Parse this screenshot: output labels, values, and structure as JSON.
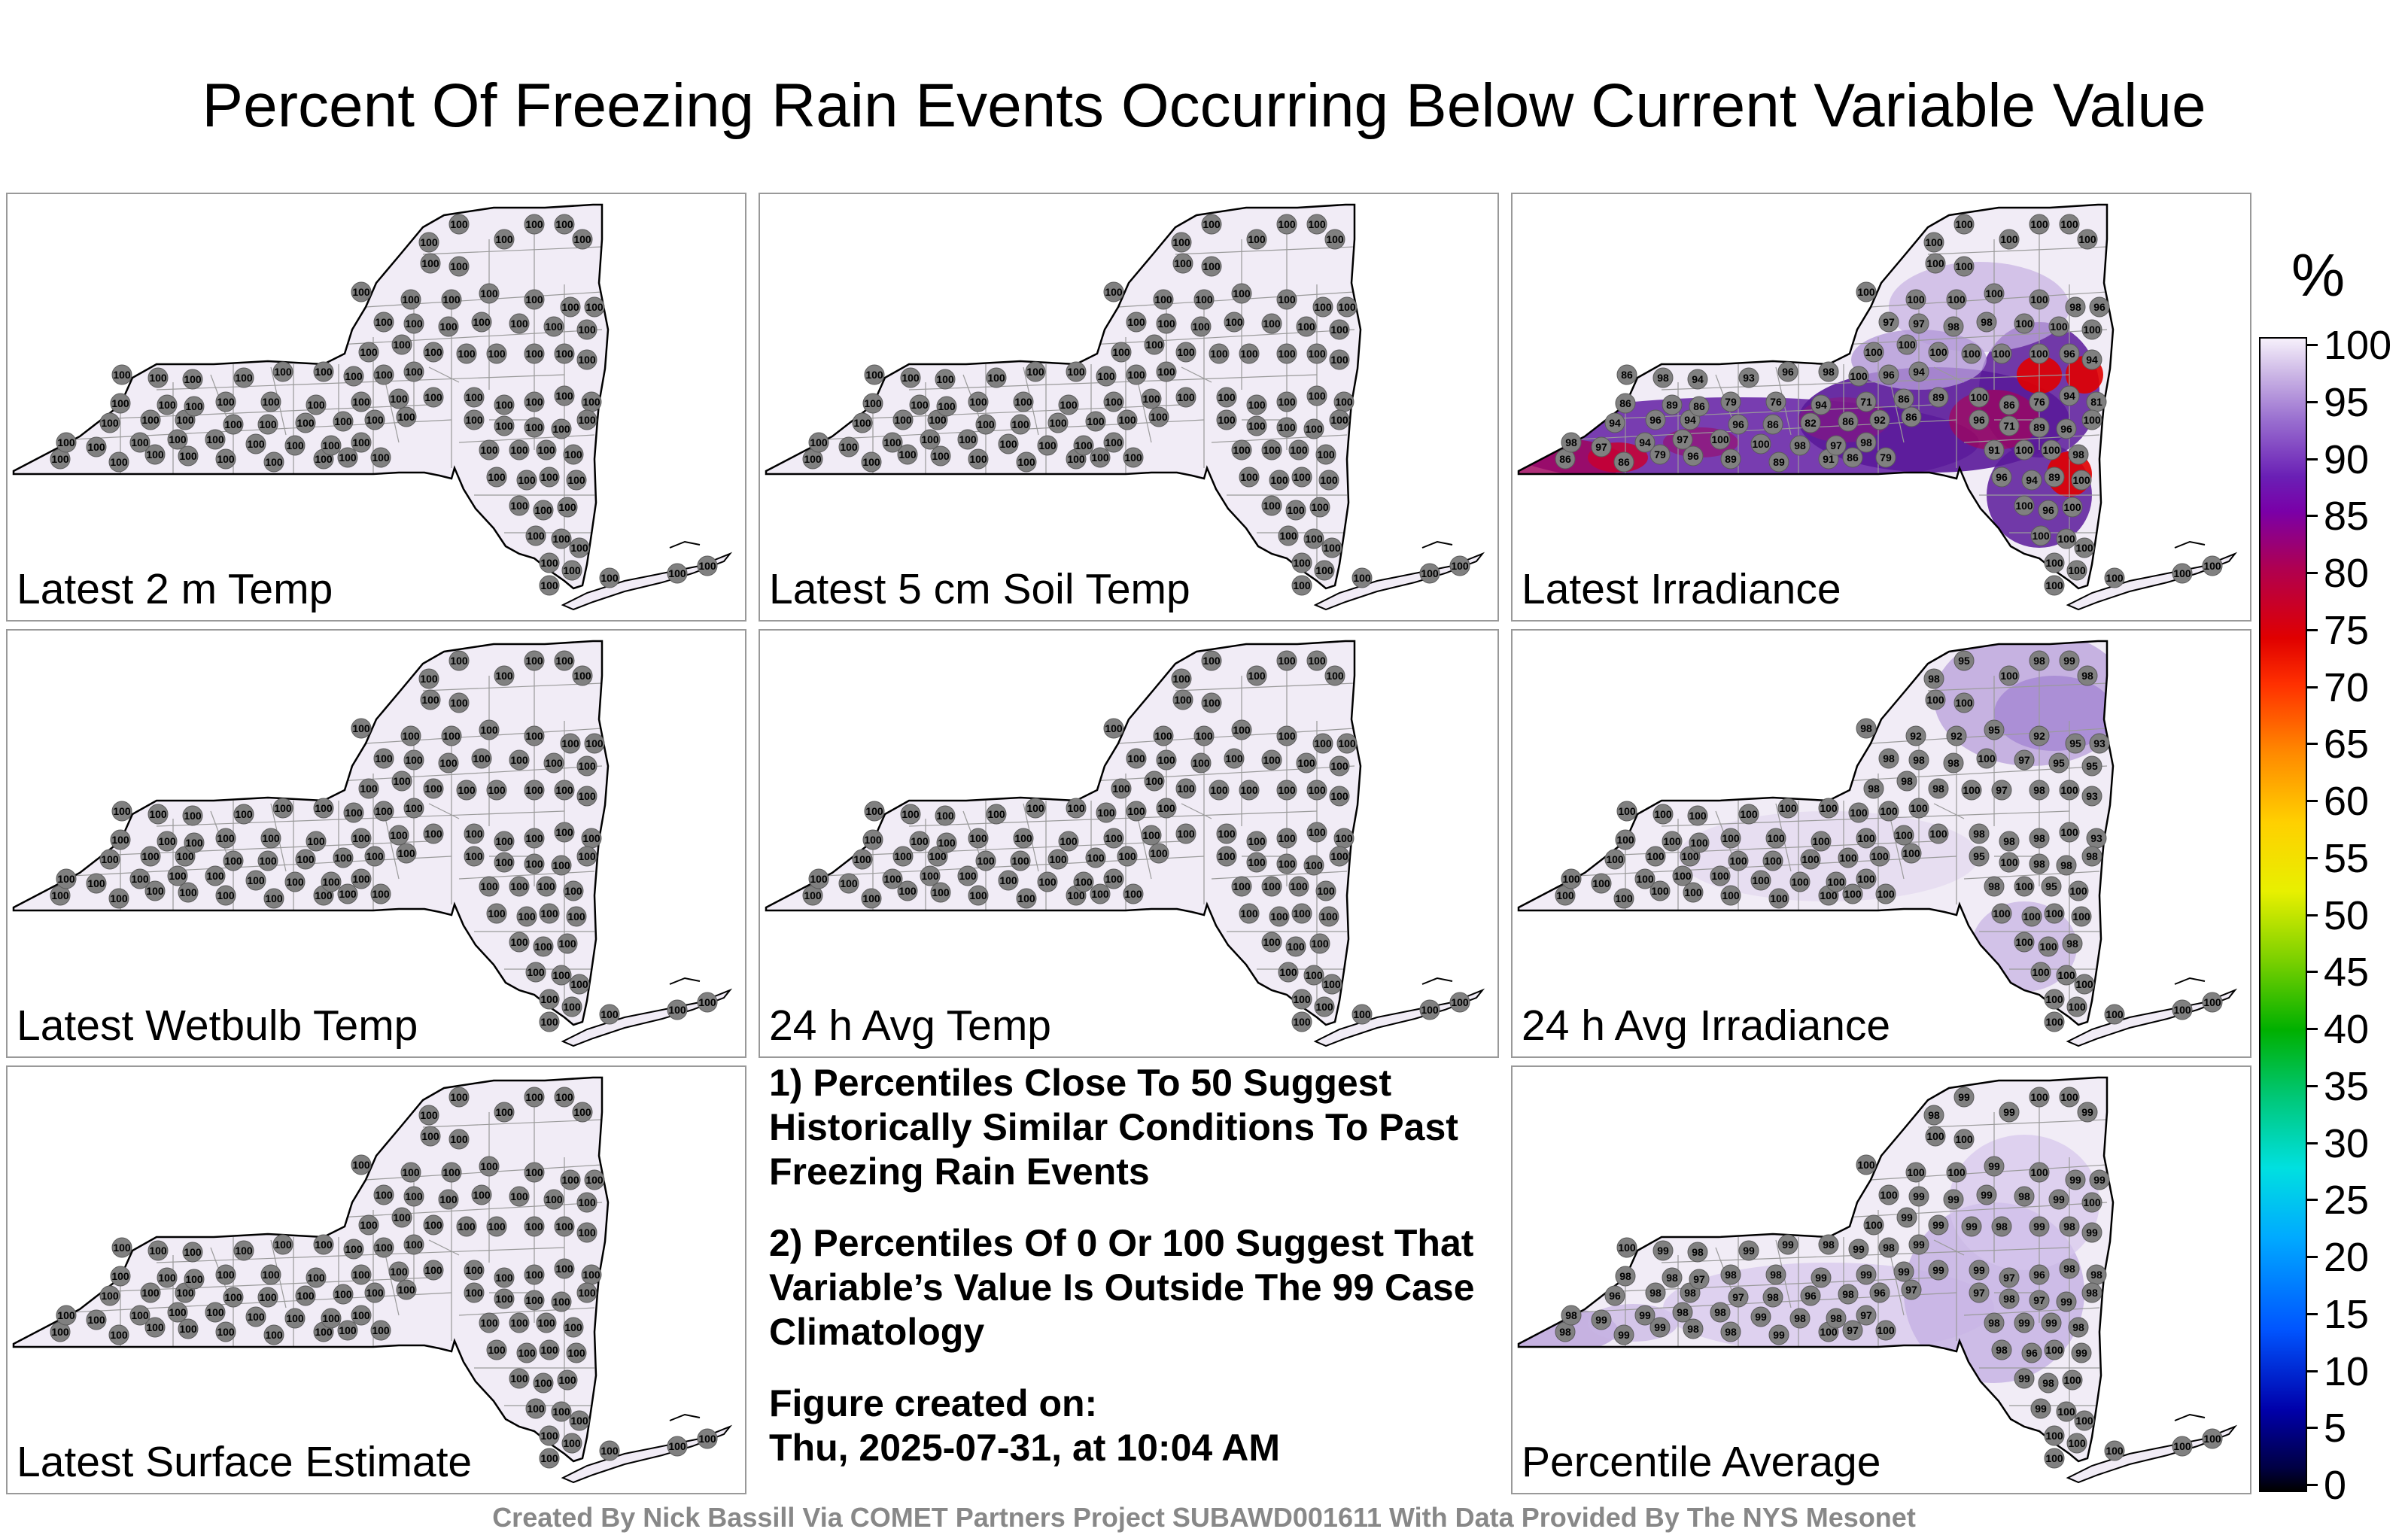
{
  "title": "Percent Of Freezing Rain Events Occurring Below Current Variable Value",
  "panels": [
    {
      "label": "Latest 2 m Temp",
      "kind": "uniform"
    },
    {
      "label": "Latest 5 cm Soil Temp",
      "kind": "uniform"
    },
    {
      "label": "Latest Irradiance",
      "kind": "irradiance"
    },
    {
      "label": "Latest Wetbulb Temp",
      "kind": "uniform"
    },
    {
      "label": "24 h Avg Temp",
      "kind": "uniform"
    },
    {
      "label": "24 h Avg Irradiance",
      "kind": "avgirr"
    },
    {
      "label": "Latest Surface Estimate",
      "kind": "uniform"
    },
    {
      "label": "Percentile Average",
      "kind": "average"
    }
  ],
  "notes": {
    "note1": "1) Percentiles Close To 50 Suggest Historically Similar Conditions To Past Freezing Rain Events",
    "note2": "2) Percentiles Of 0 Or 100 Suggest That Variable’s Value Is Outside The 99 Case Climatology",
    "created_heading": "Figure created on:",
    "created_date": "Thu, 2025-07-31, at 10:04 AM"
  },
  "footer": "Created By Nick Bassill Via COMET Partners Project SUBAWD001611 With Data Provided By The NYS Mesonet",
  "colorbar": {
    "unit": "%",
    "ticks": [
      "100",
      "95",
      "90",
      "85",
      "80",
      "75",
      "70",
      "65",
      "60",
      "55",
      "50",
      "45",
      "40",
      "35",
      "30",
      "25",
      "20",
      "15",
      "10",
      "5",
      "0"
    ]
  },
  "colors": {
    "map_fill": "#f1ecf6",
    "station_fill": "#808080",
    "county_lines": "#9a9a9a",
    "state_outline": "#000000",
    "footer_text": "#888888"
  }
}
